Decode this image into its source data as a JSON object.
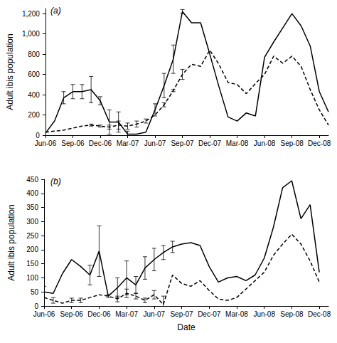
{
  "chart_data": [
    {
      "type": "line",
      "title": "(a)",
      "y_label": "Adult ibis population",
      "categories": [
        "Jun-06",
        null,
        null,
        "Sep-06",
        null,
        null,
        "Dec-06",
        null,
        null,
        "Mar-07",
        null,
        null,
        "Jun-07",
        null,
        null,
        "Sep-07",
        null,
        null,
        "Dec-07",
        null,
        null,
        "Mar-08",
        null,
        null,
        "Jun-08",
        null,
        null,
        "Sep-08",
        null,
        null,
        "Dec-08",
        null
      ],
      "series": [
        {
          "color": "#000000",
          "line_style": "solid",
          "values": [
            20,
            140,
            370,
            430,
            430,
            450,
            340,
            130,
            130,
            10,
            10,
            30,
            250,
            490,
            750,
            1220,
            1110,
            1110,
            800,
            480,
            180,
            140,
            220,
            190,
            770,
            920,
            1060,
            1200,
            1080,
            880,
            430,
            230
          ],
          "errors": [
            null,
            null,
            60,
            70,
            70,
            130,
            40,
            120,
            100,
            30,
            null,
            null,
            60,
            120,
            140,
            20,
            null,
            null,
            null,
            null,
            null,
            null,
            null,
            null,
            null,
            null,
            null,
            null,
            null,
            null,
            null,
            null
          ]
        },
        {
          "color": "#000000",
          "line_style": "dashed",
          "values": [
            30,
            40,
            50,
            70,
            90,
            100,
            90,
            80,
            100,
            90,
            110,
            140,
            200,
            300,
            440,
            600,
            700,
            680,
            840,
            700,
            520,
            500,
            410,
            510,
            600,
            780,
            710,
            780,
            680,
            450,
            250,
            100
          ],
          "errors": [
            null,
            null,
            null,
            null,
            null,
            10,
            10,
            20,
            40,
            30,
            30,
            20,
            null,
            20,
            10,
            50,
            null,
            null,
            null,
            null,
            null,
            null,
            null,
            null,
            null,
            null,
            null,
            null,
            null,
            null,
            null,
            null
          ]
        }
      ],
      "ylim": [
        0,
        1250
      ],
      "yticks": [
        0,
        200,
        400,
        600,
        800,
        1000,
        1200
      ],
      "grid": false
    },
    {
      "type": "line",
      "title": "(b)",
      "y_label": "Adult ibis population",
      "x_label": "Date",
      "categories": [
        "Jun-06",
        null,
        null,
        "Sep-06",
        null,
        null,
        "Dec-06",
        null,
        null,
        "Mar-07",
        null,
        null,
        "Jun-07",
        null,
        null,
        "Sep-07",
        null,
        null,
        "Dec-07",
        null,
        null,
        "Mar-08",
        null,
        null,
        "Jun-08",
        null,
        null,
        "Sep-08",
        null,
        null,
        "Dec-08",
        null
      ],
      "series": [
        {
          "color": "#000000",
          "line_style": "solid",
          "values": [
            50,
            45,
            115,
            165,
            140,
            110,
            195,
            35,
            65,
            100,
            75,
            135,
            165,
            190,
            210,
            220,
            225,
            215,
            140,
            85,
            100,
            105,
            90,
            110,
            170,
            280,
            420,
            445,
            310,
            360,
            120,
            null
          ],
          "errors": [
            20,
            null,
            null,
            null,
            null,
            35,
            90,
            null,
            35,
            60,
            30,
            40,
            40,
            25,
            20,
            null,
            null,
            null,
            null,
            null,
            null,
            null,
            null,
            null,
            null,
            null,
            null,
            null,
            null,
            null,
            null,
            null
          ]
        },
        {
          "color": "#000000",
          "line_style": "dashed",
          "values": [
            30,
            20,
            10,
            20,
            20,
            30,
            40,
            35,
            25,
            45,
            35,
            20,
            40,
            5,
            110,
            80,
            70,
            90,
            55,
            25,
            20,
            30,
            60,
            90,
            120,
            180,
            220,
            255,
            220,
            160,
            85,
            null
          ],
          "errors": [
            null,
            10,
            null,
            8,
            8,
            null,
            null,
            5,
            10,
            15,
            10,
            8,
            15,
            30,
            null,
            null,
            null,
            null,
            null,
            null,
            null,
            null,
            null,
            null,
            null,
            null,
            null,
            null,
            null,
            null,
            null,
            null
          ]
        }
      ],
      "ylim": [
        0,
        450
      ],
      "yticks": [
        0,
        50,
        100,
        150,
        200,
        250,
        300,
        350,
        400,
        450
      ],
      "grid": false
    }
  ]
}
